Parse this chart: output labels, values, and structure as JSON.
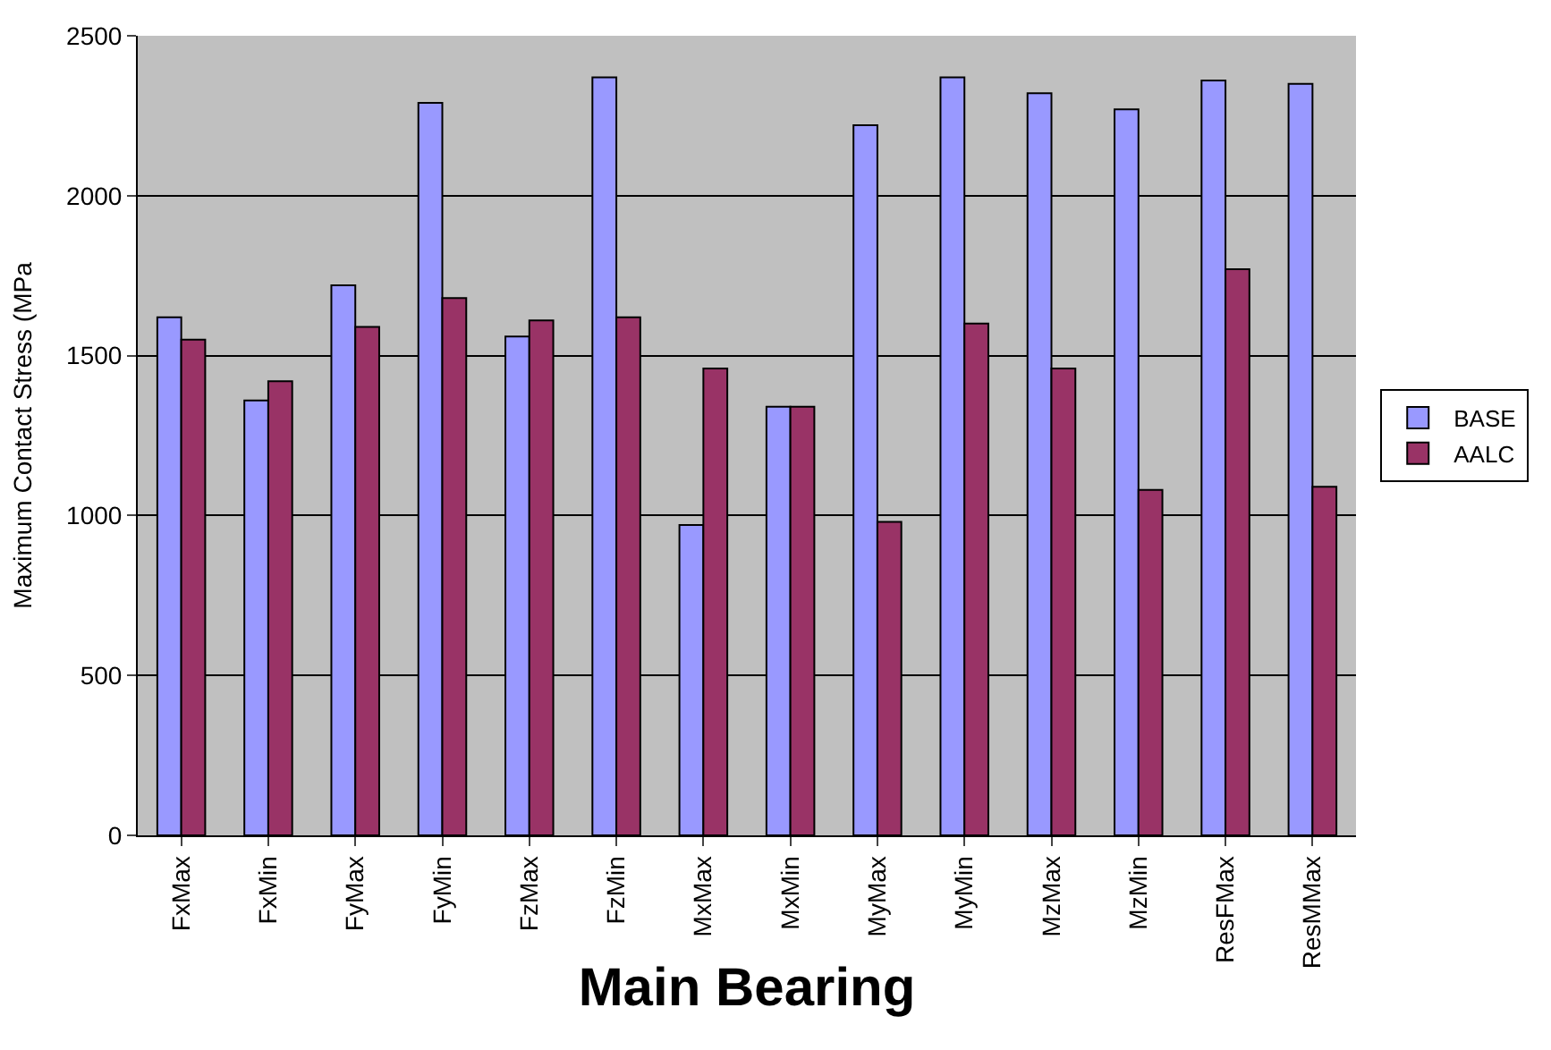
{
  "chart_data": {
    "type": "bar",
    "xlabel": "Main Bearing",
    "ylabel": "Maximum Contact Stress (MPa",
    "categories": [
      "FxMax",
      "FxMin",
      "FyMax",
      "FyMin",
      "FzMax",
      "FzMin",
      "MxMax",
      "MxMin",
      "MyMax",
      "MyMin",
      "MzMax",
      "MzMin",
      "ResFMax",
      "ResMMax"
    ],
    "series": [
      {
        "name": "BASE",
        "color": "#9999ff",
        "values": [
          1620,
          1360,
          1720,
          2290,
          1560,
          2370,
          970,
          1340,
          2220,
          2370,
          2320,
          2270,
          2360,
          2350
        ]
      },
      {
        "name": "AALC",
        "color": "#993366",
        "values": [
          1550,
          1420,
          1590,
          1680,
          1610,
          1620,
          1460,
          1340,
          980,
          1600,
          1460,
          1080,
          1770,
          1090
        ]
      }
    ],
    "ylim": [
      0,
      2500
    ],
    "yticks": [
      0,
      500,
      1000,
      1500,
      2000,
      2500
    ],
    "grid": "y",
    "legend": "right"
  }
}
